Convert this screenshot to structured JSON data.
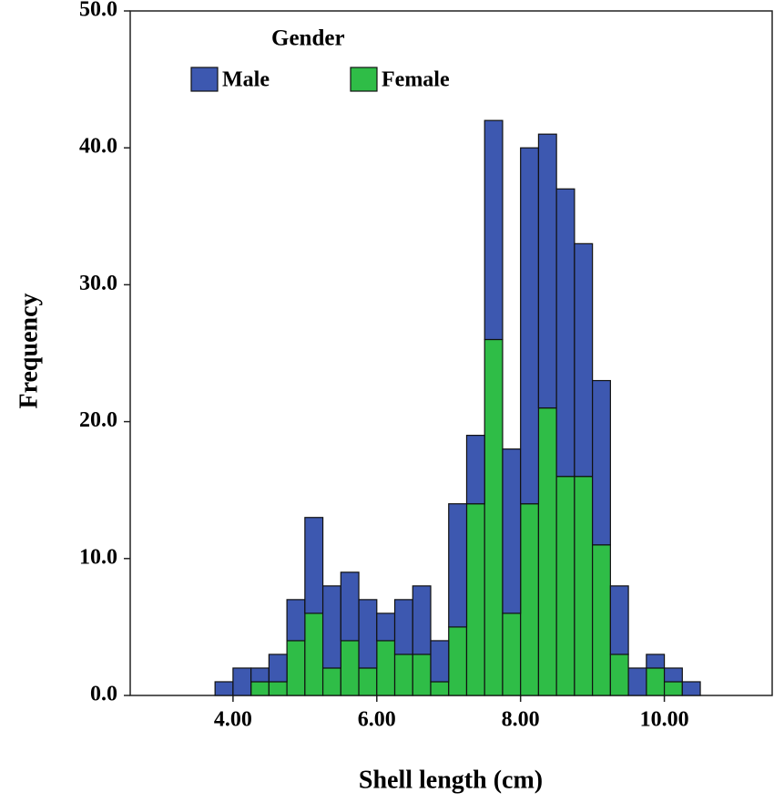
{
  "chart_data": {
    "type": "histogram",
    "x_label": "Shell length (cm)",
    "y_label": "Frequency",
    "legend_title": "Gender",
    "bins": [
      3.75,
      4.0,
      4.25,
      4.5,
      4.75,
      5.0,
      5.25,
      5.5,
      5.75,
      6.0,
      6.25,
      6.5,
      6.75,
      7.0,
      7.25,
      7.5,
      7.75,
      8.0,
      8.25,
      8.5,
      8.75,
      9.0,
      9.25,
      9.5,
      9.75,
      10.0,
      10.25,
      10.5
    ],
    "series": [
      {
        "name": "Male",
        "color": "#3d58b0",
        "values": [
          1,
          2,
          1,
          2,
          3,
          7,
          6,
          5,
          5,
          2,
          4,
          5,
          3,
          9,
          5,
          16,
          12,
          26,
          20,
          21,
          17,
          12,
          5,
          2,
          1,
          1,
          1
        ]
      },
      {
        "name": "Female",
        "color": "#2fbd47",
        "values": [
          0,
          0,
          1,
          1,
          4,
          6,
          2,
          4,
          2,
          4,
          3,
          3,
          1,
          5,
          14,
          26,
          6,
          14,
          21,
          16,
          16,
          11,
          3,
          0,
          2,
          1,
          0
        ]
      }
    ],
    "stack_order": [
      "Female",
      "Male"
    ],
    "xlim": [
      2.57,
      11.5
    ],
    "ylim": [
      0,
      50
    ],
    "xticks": [
      {
        "value": 4,
        "label": "4.00"
      },
      {
        "value": 6,
        "label": "6.00"
      },
      {
        "value": 8,
        "label": "8.00"
      },
      {
        "value": 10,
        "label": "10.00"
      }
    ],
    "yticks": [
      {
        "value": 0,
        "label": "0.0"
      },
      {
        "value": 10,
        "label": "10.0"
      },
      {
        "value": 20,
        "label": "20.0"
      },
      {
        "value": 30,
        "label": "30.0"
      },
      {
        "value": 40,
        "label": "40.0"
      },
      {
        "value": 50,
        "label": "50.0"
      }
    ]
  }
}
